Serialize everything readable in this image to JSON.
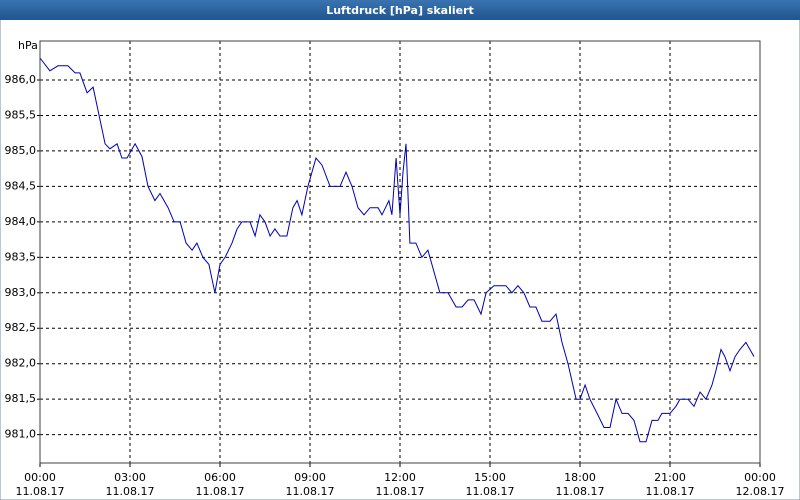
{
  "chart_data": {
    "type": "line",
    "title": "Luftdruck [hPa] skaliert",
    "y_label": "hPa",
    "color": "#0000b4",
    "grid": true,
    "xlim": [
      0,
      24
    ],
    "ylim": [
      980.6,
      986.55
    ],
    "xticks": [
      {
        "value": 0,
        "label": "00:00",
        "date": "11.08.17"
      },
      {
        "value": 3,
        "label": "03:00",
        "date": "11.08.17"
      },
      {
        "value": 6,
        "label": "06:00",
        "date": "11.08.17"
      },
      {
        "value": 9,
        "label": "09:00",
        "date": "11.08.17"
      },
      {
        "value": 12,
        "label": "12:00",
        "date": "11.08.17"
      },
      {
        "value": 15,
        "label": "15:00",
        "date": "11.08.17"
      },
      {
        "value": 18,
        "label": "18:00",
        "date": "11.08.17"
      },
      {
        "value": 21,
        "label": "21:00",
        "date": "11.08.17"
      },
      {
        "value": 24,
        "label": "00:00",
        "date": "12.08.17"
      }
    ],
    "yticks": [
      {
        "value": 981.0,
        "label": "981,0"
      },
      {
        "value": 981.5,
        "label": "981,5"
      },
      {
        "value": 982.0,
        "label": "982,0"
      },
      {
        "value": 982.5,
        "label": "982,5"
      },
      {
        "value": 983.0,
        "label": "983,0"
      },
      {
        "value": 983.5,
        "label": "983,5"
      },
      {
        "value": 984.0,
        "label": "984,0"
      },
      {
        "value": 984.5,
        "label": "984,5"
      },
      {
        "value": 985.0,
        "label": "985,0"
      },
      {
        "value": 985.5,
        "label": "985,5"
      },
      {
        "value": 986.0,
        "label": "986,0"
      }
    ],
    "x": [
      0,
      0.33,
      0.6,
      0.93,
      1.17,
      1.33,
      1.57,
      1.77,
      1.97,
      2.17,
      2.33,
      2.57,
      2.73,
      2.9,
      3.17,
      3.4,
      3.6,
      3.83,
      4,
      4.27,
      4.47,
      4.67,
      4.87,
      5.07,
      5.23,
      5.43,
      5.63,
      5.83,
      6,
      6.17,
      6.4,
      6.57,
      6.73,
      7,
      7.17,
      7.33,
      7.5,
      7.67,
      7.83,
      8,
      8.23,
      8.43,
      8.57,
      8.73,
      8.93,
      9.2,
      9.4,
      9.67,
      10,
      10.2,
      10.4,
      10.6,
      10.8,
      11,
      11.27,
      11.4,
      11.63,
      11.73,
      11.87,
      12,
      12.1,
      12.2,
      12.33,
      12.53,
      12.73,
      12.93,
      13.13,
      13.33,
      13.6,
      13.87,
      14.07,
      14.27,
      14.47,
      14.7,
      14.87,
      15.13,
      15.53,
      15.73,
      15.93,
      16.13,
      16.33,
      16.53,
      16.73,
      17,
      17.2,
      17.4,
      17.6,
      17.87,
      18,
      18.17,
      18.33,
      18.57,
      18.8,
      19,
      19.2,
      19.4,
      19.6,
      19.8,
      20,
      20.2,
      20.4,
      20.6,
      20.73,
      21,
      21.2,
      21.33,
      21.6,
      21.8,
      22,
      22.2,
      22.4,
      22.53,
      22.7,
      22.83,
      23,
      23.17,
      23.33,
      23.53,
      23.8
    ],
    "values": [
      986.31,
      986.13,
      986.2,
      986.2,
      986.1,
      986.1,
      985.82,
      985.9,
      985.5,
      985.1,
      985.03,
      985.1,
      984.9,
      984.9,
      985.1,
      984.92,
      984.5,
      984.3,
      984.4,
      984.2,
      984.0,
      984.0,
      983.7,
      983.6,
      983.7,
      983.5,
      983.4,
      983.0,
      983.4,
      983.5,
      983.7,
      983.9,
      984.0,
      984.0,
      983.8,
      984.1,
      984.0,
      983.8,
      983.9,
      983.8,
      983.8,
      984.2,
      984.3,
      984.1,
      984.5,
      984.9,
      984.8,
      984.5,
      984.5,
      984.7,
      984.5,
      984.2,
      984.1,
      984.2,
      984.2,
      984.1,
      984.3,
      984.1,
      984.9,
      984.1,
      984.7,
      985.1,
      983.7,
      983.7,
      983.5,
      983.6,
      983.3,
      983.0,
      983.0,
      982.8,
      982.8,
      982.9,
      982.9,
      982.7,
      983.0,
      983.1,
      983.1,
      983.0,
      983.1,
      983.0,
      982.8,
      982.8,
      982.6,
      982.6,
      982.7,
      982.3,
      982.0,
      981.5,
      981.5,
      981.7,
      981.5,
      981.3,
      981.1,
      981.1,
      981.5,
      981.3,
      981.3,
      981.2,
      980.9,
      980.9,
      981.2,
      981.2,
      981.3,
      981.3,
      981.4,
      981.5,
      981.5,
      981.4,
      981.6,
      981.5,
      981.7,
      981.9,
      982.2,
      982.1,
      981.9,
      982.1,
      982.2,
      982.3,
      982.1
    ]
  }
}
